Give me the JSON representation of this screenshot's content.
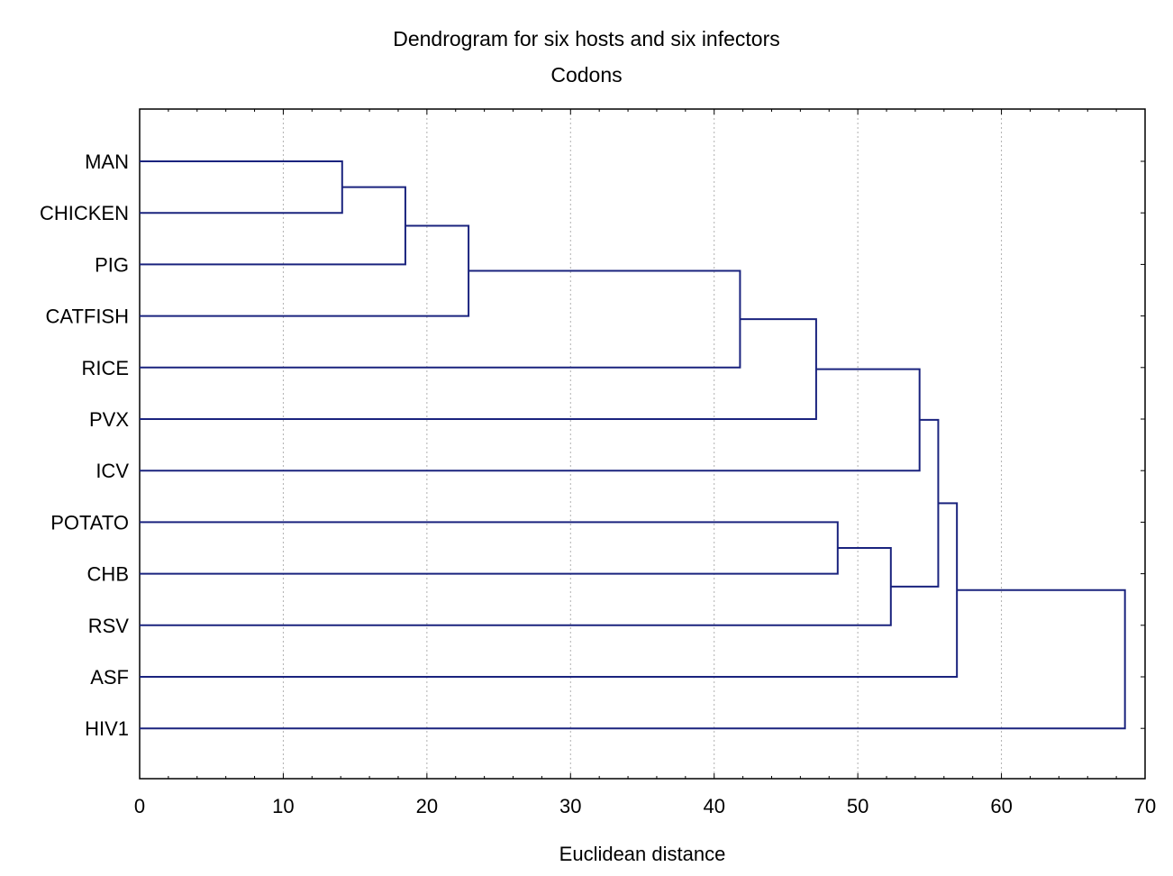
{
  "chart_data": {
    "type": "dendrogram",
    "title": "Dendrogram for six hosts and six infectors",
    "subtitle": "Codons",
    "xlabel": "Euclidean distance",
    "xlim": [
      0,
      70
    ],
    "xticks": [
      0,
      10,
      20,
      30,
      40,
      50,
      60,
      70
    ],
    "grid": true,
    "line_color": "#1a237e",
    "leaves": [
      "MAN",
      "CHICKEN",
      "PIG",
      "CATFISH",
      "RICE",
      "PVX",
      "ICV",
      "POTATO",
      "CHB",
      "RSV",
      "ASF",
      "HIV1"
    ],
    "merges": [
      {
        "left": "MAN",
        "right": "CHICKEN",
        "distance": 14.1
      },
      {
        "left": "MAN+CHICKEN",
        "right": "PIG",
        "distance": 18.5
      },
      {
        "left": "MAN+CHICKEN+PIG",
        "right": "CATFISH",
        "distance": 22.9
      },
      {
        "left": "MAN+CHICKEN+PIG+CATFISH",
        "right": "RICE",
        "distance": 41.8
      },
      {
        "left": "MAN+CHICKEN+PIG+CATFISH+RICE",
        "right": "PVX",
        "distance": 47.1
      },
      {
        "left": "MAN+CHICKEN+PIG+CATFISH+RICE+PVX",
        "right": "ICV",
        "distance": 54.3
      },
      {
        "left": "POTATO",
        "right": "CHB",
        "distance": 48.6
      },
      {
        "left": "POTATO+CHB",
        "right": "RSV",
        "distance": 52.3
      },
      {
        "left": "MAN..ICV",
        "right": "POTATO+CHB+RSV",
        "distance": 55.6
      },
      {
        "left": "MAN..RSV",
        "right": "ASF",
        "distance": 56.9
      },
      {
        "left": "MAN..ASF",
        "right": "HIV1",
        "distance": 68.6
      }
    ]
  }
}
